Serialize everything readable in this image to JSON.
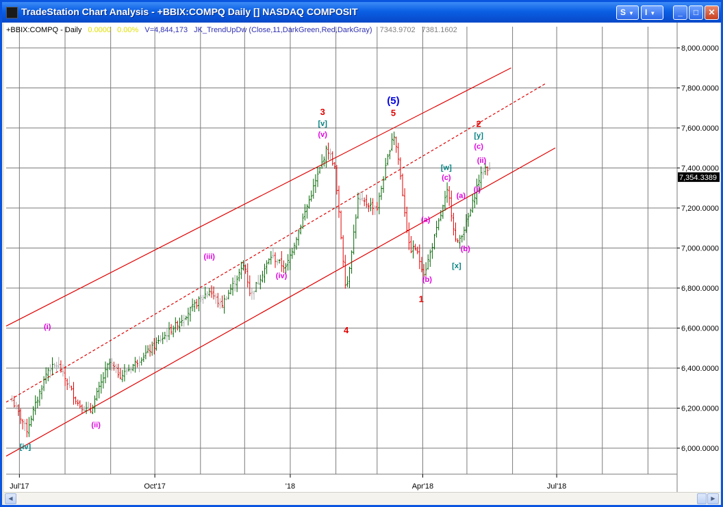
{
  "window": {
    "title": "TradeStation Chart Analysis - +BBIX:COMPQ Daily [] NASDAQ COMPOSIT",
    "buttons": {
      "s_menu": "S",
      "i_menu": "I",
      "minimize": "_",
      "maximize": "□",
      "close": "✕"
    }
  },
  "legend": {
    "symbol": "+BBIX:COMPQ - Daily",
    "change": "0.0000",
    "change_pct": "0.00%",
    "volume": "V=4,844,173",
    "indicator": "JK_TrendUpDw (Close,11,DarkGreen,Red,DarkGray)",
    "v1": "7343.9702",
    "v2": "7381.1602"
  },
  "price_axis": {
    "labels": [
      "8,000.0000",
      "7,800.0000",
      "7,600.0000",
      "7,400.0000",
      "7,200.0000",
      "7,000.0000",
      "6,800.0000",
      "6,600.0000",
      "6,400.0000",
      "6,200.0000",
      "6,000.0000"
    ],
    "last_price": "7,354.3389"
  },
  "date_axis": {
    "labels": [
      "Jul'17",
      "Oct'17",
      "'18",
      "Apr'18",
      "Jul'18"
    ]
  },
  "colors": {
    "up": "#006400",
    "down": "#e00000",
    "neutral": "#a9a9a9",
    "channel": "#e00000",
    "grid": "#808080",
    "wave_magenta": "#e000e0",
    "wave_teal": "#008080",
    "wave_red": "#e00000",
    "wave_blue": "#0000e0"
  },
  "chart_data": {
    "type": "ohlc",
    "series_name": "+BBIX:COMPQ - Daily",
    "ylim": [
      5900,
      8200
    ],
    "y_ticks": [
      6000,
      6200,
      6400,
      6600,
      6800,
      7000,
      7200,
      7400,
      7600,
      7800,
      8000
    ],
    "x_ticks": [
      "Jul'17",
      "Oct'17",
      "'18",
      "Apr'18",
      "Jul'18"
    ],
    "last_price": 7354.3389,
    "price_path": [
      {
        "date": "2017-06-26",
        "close": 6240
      },
      {
        "date": "2017-07-06",
        "close": 6090
      },
      {
        "date": "2017-07-20",
        "close": 6390
      },
      {
        "date": "2017-07-27",
        "close": 6420
      },
      {
        "date": "2017-08-10",
        "close": 6220
      },
      {
        "date": "2017-08-18",
        "close": 6180
      },
      {
        "date": "2017-08-31",
        "close": 6430
      },
      {
        "date": "2017-09-08",
        "close": 6360
      },
      {
        "date": "2017-09-29",
        "close": 6500
      },
      {
        "date": "2017-10-16",
        "close": 6620
      },
      {
        "date": "2017-11-07",
        "close": 6790
      },
      {
        "date": "2017-11-15",
        "close": 6710
      },
      {
        "date": "2017-12-01",
        "close": 6920
      },
      {
        "date": "2017-12-05",
        "close": 6760
      },
      {
        "date": "2017-12-19",
        "close": 6960
      },
      {
        "date": "2017-12-29",
        "close": 6900
      },
      {
        "date": "2018-01-26",
        "close": 7500
      },
      {
        "date": "2018-01-31",
        "close": 7410
      },
      {
        "date": "2018-02-08",
        "close": 6780
      },
      {
        "date": "2018-02-16",
        "close": 7240
      },
      {
        "date": "2018-03-01",
        "close": 7200
      },
      {
        "date": "2018-03-12",
        "close": 7580
      },
      {
        "date": "2018-03-15",
        "close": 7470
      },
      {
        "date": "2018-03-23",
        "close": 6990
      },
      {
        "date": "2018-03-27",
        "close": 7000
      },
      {
        "date": "2018-04-02",
        "close": 6870
      },
      {
        "date": "2018-04-18",
        "close": 7290
      },
      {
        "date": "2018-04-24",
        "close": 7010
      },
      {
        "date": "2018-05-01",
        "close": 7130
      },
      {
        "date": "2018-05-04",
        "close": 7200
      },
      {
        "date": "2018-05-09",
        "close": 7340
      },
      {
        "date": "2018-05-14",
        "close": 7410
      },
      {
        "date": "2018-05-17",
        "close": 7380
      }
    ],
    "channel": [
      {
        "style": "solid",
        "from": {
          "date": "2017-06-22",
          "price": 6610
        },
        "to": {
          "date": "2018-05-31",
          "price": 7900
        }
      },
      {
        "style": "dashed",
        "from": {
          "date": "2017-06-22",
          "price": 6230
        },
        "to": {
          "date": "2018-06-23",
          "price": 7820
        }
      },
      {
        "style": "solid",
        "from": {
          "date": "2017-06-22",
          "price": 5960
        },
        "to": {
          "date": "2018-06-30",
          "price": 7500
        }
      }
    ],
    "wave_labels": [
      {
        "text": "[iv]",
        "color": "teal",
        "date": "2017-07-05",
        "price": 5995
      },
      {
        "text": "(i)",
        "color": "magenta",
        "date": "2017-07-20",
        "price": 6595
      },
      {
        "text": "(ii)",
        "color": "magenta",
        "date": "2017-08-22",
        "price": 6105
      },
      {
        "text": "(iii)",
        "color": "magenta",
        "date": "2017-11-07",
        "price": 6945
      },
      {
        "text": "(iv)",
        "color": "magenta",
        "date": "2017-12-26",
        "price": 6850
      },
      {
        "text": "(v)",
        "color": "magenta",
        "date": "2018-01-23",
        "price": 7555
      },
      {
        "text": "[v]",
        "color": "teal",
        "date": "2018-01-23",
        "price": 7610
      },
      {
        "text": "3",
        "color": "red",
        "date": "2018-01-23",
        "price": 7665
      },
      {
        "text": "4",
        "color": "red",
        "date": "2018-02-08",
        "price": 6575
      },
      {
        "text": "(5)",
        "color": "blue",
        "date": "2018-03-12",
        "price": 7720
      },
      {
        "text": "5",
        "color": "red",
        "date": "2018-03-12",
        "price": 7660
      },
      {
        "text": "(a)",
        "color": "magenta",
        "date": "2018-04-03",
        "price": 7130
      },
      {
        "text": "(b)",
        "color": "magenta",
        "date": "2018-04-04",
        "price": 6830
      },
      {
        "text": "1",
        "color": "red",
        "date": "2018-03-31",
        "price": 6730
      },
      {
        "text": "[w]",
        "color": "teal",
        "date": "2018-04-17",
        "price": 7390
      },
      {
        "text": "(c)",
        "color": "magenta",
        "date": "2018-04-17",
        "price": 7340
      },
      {
        "text": "[x]",
        "color": "teal",
        "date": "2018-04-24",
        "price": 6900
      },
      {
        "text": "(a)",
        "color": "magenta",
        "date": "2018-04-27",
        "price": 7250
      },
      {
        "text": "(b)",
        "color": "magenta",
        "date": "2018-04-30",
        "price": 6985
      },
      {
        "text": "(i)",
        "color": "magenta",
        "date": "2018-05-08",
        "price": 7280
      },
      {
        "text": "(ii)",
        "color": "magenta",
        "date": "2018-05-11",
        "price": 7425
      },
      {
        "text": "(c)",
        "color": "magenta",
        "date": "2018-05-09",
        "price": 7495
      },
      {
        "text": "[y]",
        "color": "teal",
        "date": "2018-05-09",
        "price": 7550
      },
      {
        "text": "2",
        "color": "red",
        "date": "2018-05-09",
        "price": 7605
      }
    ]
  }
}
